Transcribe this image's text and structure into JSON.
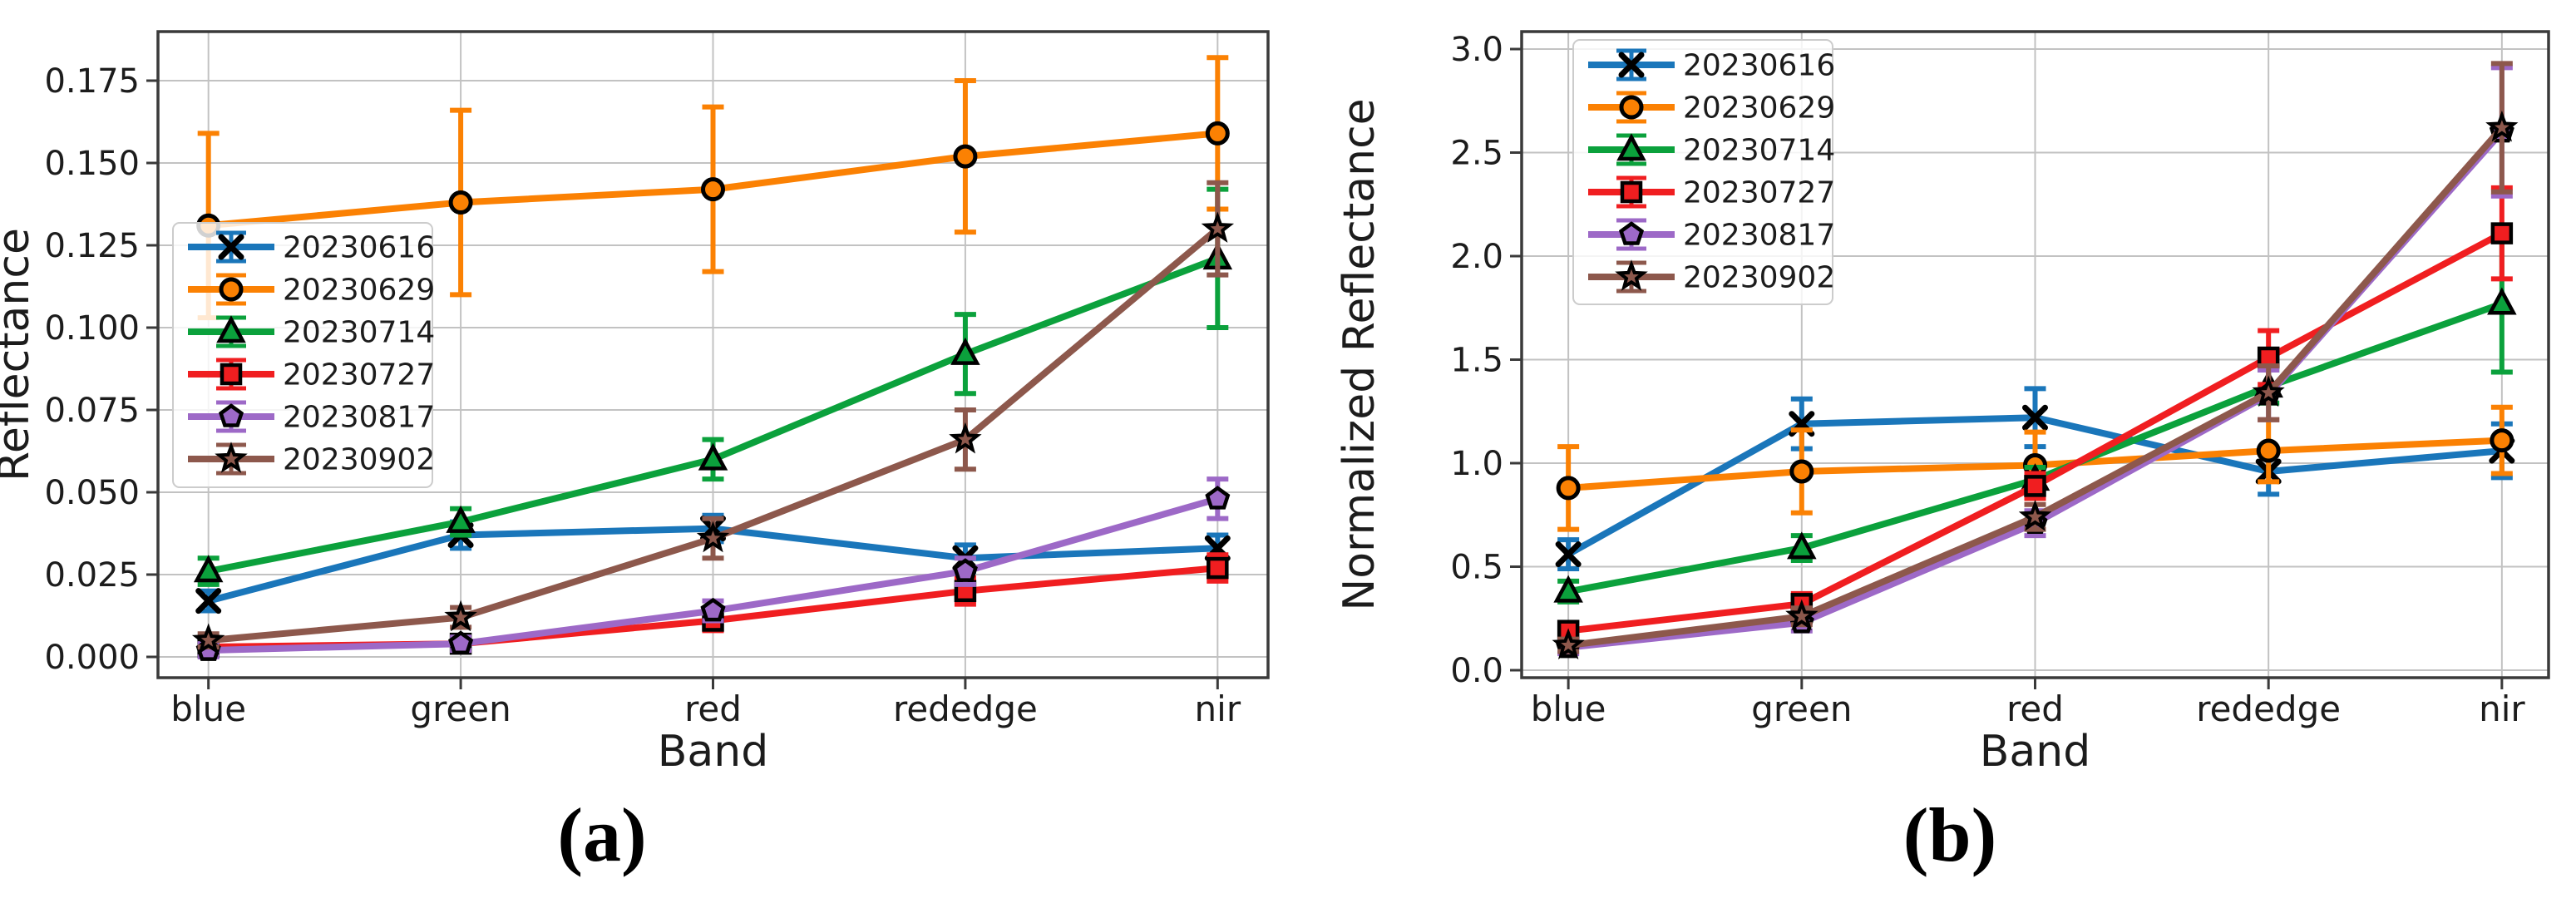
{
  "figure": {
    "background": "#ffffff",
    "grid_color": "#c2c2c2",
    "spine_color": "#3a3a3a",
    "text_color": "#1c1c1c"
  },
  "chart_data": [
    {
      "id": "a",
      "type": "line",
      "caption": "(a)",
      "xlabel": "Band",
      "ylabel": "Reflectance",
      "categories": [
        "blue",
        "green",
        "red",
        "rededge",
        "nir"
      ],
      "ytick_labels": [
        "0.000",
        "0.025",
        "0.050",
        "0.075",
        "0.100",
        "0.125",
        "0.150",
        "0.175"
      ],
      "ytick_values": [
        0,
        0.025,
        0.05,
        0.075,
        0.1,
        0.125,
        0.15,
        0.175
      ],
      "ylim": [
        -0.0063,
        0.19
      ],
      "grid": true,
      "legend_position": "center-left-inside",
      "series": [
        {
          "name": "20230616",
          "color": "#1a76ba",
          "marker": "x",
          "values": [
            0.017,
            0.037,
            0.039,
            0.03,
            0.033
          ],
          "errors": [
            0.003,
            0.004,
            0.004,
            0.004,
            0.004
          ]
        },
        {
          "name": "20230629",
          "color": "#fb8103",
          "marker": "circle",
          "values": [
            0.131,
            0.138,
            0.142,
            0.152,
            0.159
          ],
          "errors": [
            0.028,
            0.028,
            0.025,
            0.023,
            0.023
          ]
        },
        {
          "name": "20230714",
          "color": "#0ba13c",
          "marker": "triangle",
          "values": [
            0.026,
            0.041,
            0.06,
            0.092,
            0.121
          ],
          "errors": [
            0.004,
            0.004,
            0.006,
            0.012,
            0.021
          ]
        },
        {
          "name": "20230727",
          "color": "#f01e20",
          "marker": "square",
          "values": [
            0.003,
            0.004,
            0.011,
            0.02,
            0.027
          ],
          "errors": [
            0.002,
            0.002,
            0.003,
            0.004,
            0.004
          ]
        },
        {
          "name": "20230817",
          "color": "#9d69c7",
          "marker": "pentagon",
          "values": [
            0.002,
            0.004,
            0.014,
            0.026,
            0.048
          ],
          "errors": [
            0.002,
            0.002,
            0.003,
            0.004,
            0.006
          ]
        },
        {
          "name": "20230902",
          "color": "#8d584c",
          "marker": "star",
          "values": [
            0.005,
            0.012,
            0.036,
            0.066,
            0.13
          ],
          "errors": [
            0.002,
            0.003,
            0.006,
            0.009,
            0.014
          ]
        }
      ]
    },
    {
      "id": "b",
      "type": "line",
      "caption": "(b)",
      "xlabel": "Band",
      "ylabel": "Normalized Reflectance",
      "categories": [
        "blue",
        "green",
        "red",
        "rededge",
        "nir"
      ],
      "ytick_labels": [
        "0.0",
        "0.5",
        "1.0",
        "1.5",
        "2.0",
        "2.5",
        "3.0"
      ],
      "ytick_values": [
        0,
        0.5,
        1,
        1.5,
        2,
        2.5,
        3
      ],
      "ylim": [
        -0.04,
        3.09
      ],
      "grid": true,
      "legend_position": "upper-left-inside",
      "series": [
        {
          "name": "20230616",
          "color": "#1a76ba",
          "marker": "x",
          "values": [
            0.56,
            1.19,
            1.22,
            0.96,
            1.06
          ],
          "errors": [
            0.07,
            0.12,
            0.14,
            0.11,
            0.13
          ]
        },
        {
          "name": "20230629",
          "color": "#fb8103",
          "marker": "circle",
          "values": [
            0.88,
            0.96,
            0.99,
            1.06,
            1.11
          ],
          "errors": [
            0.2,
            0.2,
            0.16,
            0.15,
            0.16
          ]
        },
        {
          "name": "20230714",
          "color": "#0ba13c",
          "marker": "triangle",
          "values": [
            0.38,
            0.59,
            0.92,
            1.37,
            1.77
          ],
          "errors": [
            0.05,
            0.06,
            0.06,
            0.08,
            0.33
          ]
        },
        {
          "name": "20230727",
          "color": "#f01e20",
          "marker": "square",
          "values": [
            0.19,
            0.32,
            0.89,
            1.51,
            2.11
          ],
          "errors": [
            0.04,
            0.05,
            0.06,
            0.13,
            0.22
          ]
        },
        {
          "name": "20230817",
          "color": "#9d69c7",
          "marker": "pentagon",
          "values": [
            0.11,
            0.23,
            0.71,
            1.33,
            2.6
          ],
          "errors": [
            0.03,
            0.04,
            0.06,
            0.12,
            0.31
          ]
        },
        {
          "name": "20230902",
          "color": "#8d584c",
          "marker": "star",
          "values": [
            0.12,
            0.26,
            0.74,
            1.34,
            2.62
          ],
          "errors": [
            0.03,
            0.04,
            0.06,
            0.13,
            0.31
          ]
        }
      ]
    }
  ]
}
